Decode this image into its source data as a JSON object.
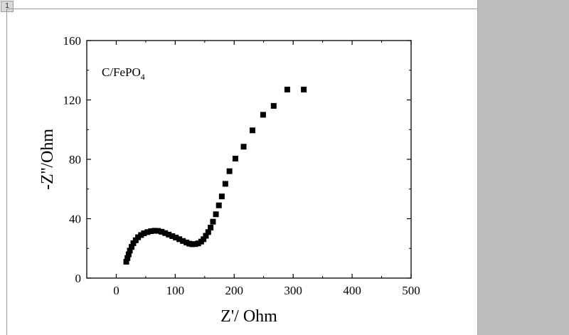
{
  "window": {
    "page_number": "1",
    "colors": {
      "page": "#ffffff",
      "panel": "#bdbdbd",
      "marker": "#000000"
    }
  },
  "chart_data": {
    "type": "scatter",
    "xlabel": "Z'/ Ohm",
    "ylabel": "-Z''/Ohm",
    "annotation": {
      "main": "C/FePO",
      "subscript": "4"
    },
    "xlim": [
      -50,
      500
    ],
    "ylim": [
      0,
      160
    ],
    "xticks": [
      0,
      100,
      200,
      300,
      400,
      500
    ],
    "yticks": [
      0,
      40,
      80,
      120,
      160
    ],
    "grid": false,
    "marker": "square",
    "series": [
      {
        "x": [
          17,
          19,
          21,
          23,
          26,
          29,
          33,
          37,
          42,
          47,
          53,
          59,
          65,
          71,
          77,
          83,
          89,
          95,
          101,
          107,
          113,
          119,
          124,
          129,
          134,
          139,
          144,
          148,
          152,
          156,
          160,
          164,
          169,
          174,
          179,
          185,
          192,
          202,
          216,
          231,
          249,
          267,
          290,
          318
        ],
        "y": [
          11,
          13.5,
          16,
          18.5,
          21,
          23.5,
          25.5,
          27.5,
          29,
          30.2,
          31,
          31.6,
          31.9,
          31.8,
          31.2,
          30.3,
          29.3,
          28.3,
          27.3,
          26.2,
          25,
          24,
          23.2,
          22.8,
          22.9,
          23.4,
          24.6,
          26.2,
          28.5,
          31,
          34,
          38,
          43,
          49,
          55,
          63.5,
          72,
          80.5,
          88.5,
          99.5,
          110,
          116,
          127,
          127
        ]
      }
    ]
  }
}
